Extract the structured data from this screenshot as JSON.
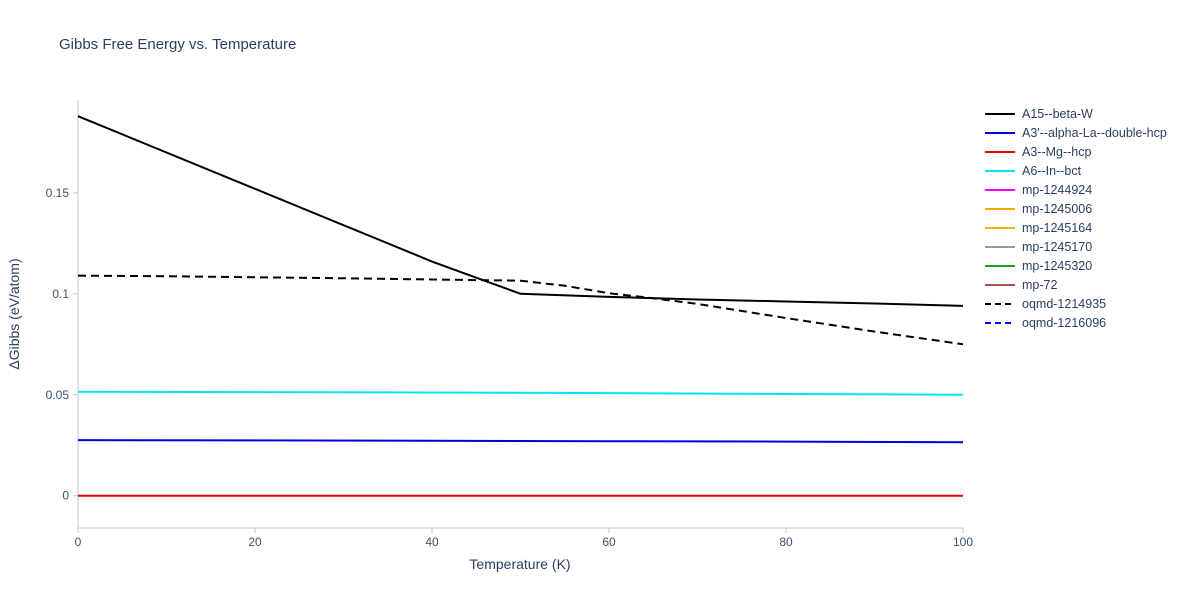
{
  "chart_data": {
    "type": "line",
    "title": "Gibbs Free Energy vs. Temperature",
    "xlabel": "Temperature (K)",
    "ylabel": "ΔGibbs (eV/atom)",
    "xlim": [
      0,
      100
    ],
    "ylim": [
      -0.016,
      0.196
    ],
    "grid": false,
    "legend_position": "right",
    "xticks": {
      "values": [
        0,
        20,
        40,
        60,
        80,
        100
      ],
      "labels": [
        "0",
        "20",
        "40",
        "60",
        "80",
        "100"
      ]
    },
    "yticks": {
      "values": [
        0,
        0.05,
        0.1,
        0.15
      ],
      "labels": [
        "0",
        "0.05",
        "0.1",
        "0.15"
      ]
    },
    "colors": {
      "axis": "#c2c9d2",
      "tick_label": "#3b4f71",
      "title": "#2a3f5f"
    },
    "series": [
      {
        "name": "A15--beta-W",
        "color": "#000000",
        "dash": "solid",
        "x": [
          0,
          5,
          10,
          15,
          20,
          25,
          30,
          35,
          40,
          45,
          50,
          60,
          70,
          80,
          90,
          100
        ],
        "y": [
          0.188,
          0.179,
          0.17,
          0.161,
          0.152,
          0.143,
          0.134,
          0.125,
          0.116,
          0.108,
          0.1,
          0.0985,
          0.0972,
          0.0962,
          0.0952,
          0.094
        ]
      },
      {
        "name": "A3'--alpha-La--double-hcp",
        "color": "#0000dd",
        "dash": "solid",
        "x": [
          0,
          20,
          40,
          60,
          80,
          100
        ],
        "y": [
          0.0275,
          0.0274,
          0.0272,
          0.027,
          0.0268,
          0.0265
        ]
      },
      {
        "name": "A3--Mg--hcp",
        "color": "#ee0000",
        "dash": "solid",
        "x": [
          0,
          100
        ],
        "y": [
          0.0,
          0.0
        ]
      },
      {
        "name": "A6--In--bct",
        "color": "#00e5ff",
        "dash": "solid",
        "x": [
          0,
          20,
          40,
          60,
          80,
          100
        ],
        "y": [
          0.0515,
          0.0513,
          0.0511,
          0.0508,
          0.0504,
          0.05
        ]
      },
      {
        "name": "mp-1244924",
        "color": "#ff00ff",
        "dash": "solid",
        "x": [],
        "y": []
      },
      {
        "name": "mp-1245006",
        "color": "#ffa500",
        "dash": "solid",
        "x": [],
        "y": []
      },
      {
        "name": "mp-1245164",
        "color": "#e3b505",
        "dash": "solid",
        "x": [],
        "y": []
      },
      {
        "name": "mp-1245170",
        "color": "#9a9a9a",
        "dash": "solid",
        "x": [],
        "y": []
      },
      {
        "name": "mp-1245320",
        "color": "#1f9d1f",
        "dash": "solid",
        "x": [],
        "y": []
      },
      {
        "name": "mp-72",
        "color": "#a05252",
        "dash": "solid",
        "x": [],
        "y": []
      },
      {
        "name": "oqmd-1214935",
        "color": "#000000",
        "dash": "dash",
        "x": [
          0,
          10,
          20,
          30,
          40,
          50,
          55,
          60,
          65,
          70,
          80,
          90,
          100
        ],
        "y": [
          0.109,
          0.1087,
          0.1082,
          0.1077,
          0.1071,
          0.1065,
          0.104,
          0.1003,
          0.0978,
          0.095,
          0.088,
          0.0813,
          0.075
        ]
      },
      {
        "name": "oqmd-1216096",
        "color": "#0000ff",
        "dash": "dash",
        "x": [],
        "y": []
      }
    ]
  }
}
